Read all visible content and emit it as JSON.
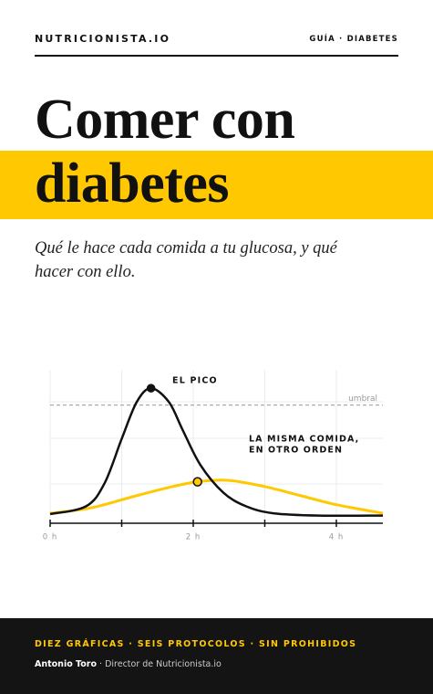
{
  "header": {
    "brand": "NUTRICIONISTA.IO",
    "tag": "GUÍA · DIABETES"
  },
  "title": {
    "line1": "Comer con",
    "line2": "diabetes"
  },
  "subtitle": [
    "Qué le hace cada comida a tu glucosa, y qué",
    "hacer con ello."
  ],
  "chart_data": {
    "type": "line",
    "xlim": [
      0,
      4.65
    ],
    "ylim": [
      0,
      100
    ],
    "xticks": [
      {
        "value": 0,
        "label": "0 h"
      },
      {
        "value": 2,
        "label": "2 h"
      },
      {
        "value": 4,
        "label": "4 h"
      }
    ],
    "xminorticks": [
      1,
      3
    ],
    "threshold": {
      "value": 77,
      "label": "umbral"
    },
    "series": [
      {
        "name": "EL PICO",
        "color": "#111111",
        "x": [
          0,
          0.5,
          0.76,
          1.0,
          1.21,
          1.41,
          1.66,
          1.85,
          2.1,
          2.42,
          2.74,
          3.12,
          3.76,
          4.65
        ],
        "values": [
          6,
          11,
          26,
          55,
          79,
          88,
          79,
          61,
          38,
          20,
          11,
          6.5,
          5,
          5
        ],
        "marker_index": 5
      },
      {
        "name": [
          "LA MISMA COMIDA,",
          "EN OTRO ORDEN"
        ],
        "color": "#ffc800",
        "x": [
          0,
          0.57,
          1.21,
          1.72,
          2.06,
          2.48,
          2.99,
          3.5,
          4.01,
          4.65
        ],
        "values": [
          6.5,
          10,
          18,
          24,
          27,
          28,
          24,
          18,
          12,
          6.5
        ],
        "marker_index": 4
      }
    ]
  },
  "footer": {
    "tagline": "DIEZ GRÁFICAS · SEIS PROTOCOLOS · SIN PROHIBIDOS",
    "author": "Antonio Toro",
    "role": "· Director de Nutricionista.io"
  }
}
